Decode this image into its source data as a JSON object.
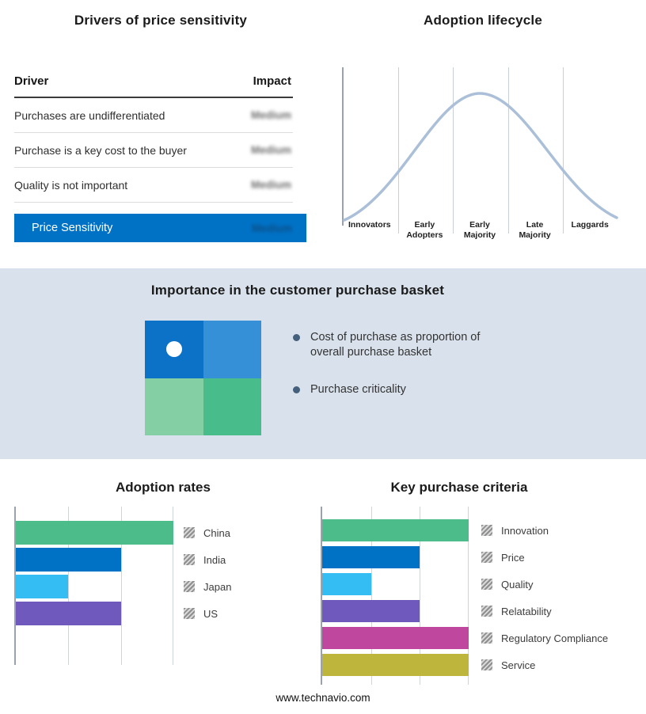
{
  "footer": {
    "url": "www.technavio.com"
  },
  "drivers_panel": {
    "title": "Drivers of price sensitivity",
    "columns": {
      "driver": "Driver",
      "impact": "Impact"
    },
    "rows": [
      {
        "driver": "Purchases are undifferentiated",
        "impact": "Medium"
      },
      {
        "driver": "Purchase is a key cost to the buyer",
        "impact": "Medium"
      },
      {
        "driver": "Quality is not important",
        "impact": "Medium"
      }
    ],
    "summary_row": {
      "label": "Price Sensitivity",
      "impact": "Medium"
    },
    "accent_color": "#0072c6"
  },
  "lifecycle_panel": {
    "title": "Adoption lifecycle",
    "stages": [
      [
        "Innovators"
      ],
      [
        "Early",
        "Adopters"
      ],
      [
        "Early",
        "Majority"
      ],
      [
        "Late",
        "Majority"
      ],
      [
        "Laggards"
      ]
    ],
    "curve_color": "#abc0d8"
  },
  "basket_panel": {
    "title": "Importance in the customer purchase basket",
    "background": "#d9e2ec",
    "quadrants": {
      "top_left": "#0c72c8",
      "top_right": "#3590d7",
      "bottom_left": "#84cfa3",
      "bottom_right": "#48bd8b"
    },
    "bullets": [
      {
        "text": "Cost of purchase as proportion of overall purchase basket"
      },
      {
        "text": "Purchase criticality"
      }
    ]
  },
  "chart_data": [
    {
      "type": "table",
      "title": "Drivers of price sensitivity",
      "columns": [
        "Driver",
        "Impact"
      ],
      "rows": [
        [
          "Purchases are undifferentiated",
          "Medium"
        ],
        [
          "Purchase is a key cost to the buyer",
          "Medium"
        ],
        [
          "Quality is not important",
          "Medium"
        ],
        [
          "Price Sensitivity",
          "Medium"
        ]
      ]
    },
    {
      "type": "line",
      "title": "Adoption lifecycle",
      "categories": [
        "Innovators",
        "Early Adopters",
        "Early Majority",
        "Late Majority",
        "Laggards"
      ],
      "description": "Bell-shaped adoption curve peaking at Early Majority",
      "line_color": "#abc0d8",
      "grid": true
    },
    {
      "type": "bar",
      "title": "Adoption rates",
      "orientation": "horizontal",
      "categories": [
        "China",
        "India",
        "Japan",
        "US"
      ],
      "values": [
        3,
        2,
        1,
        2
      ],
      "xlim": [
        0,
        3
      ],
      "colors": [
        "#4bbc8a",
        "#0072c6",
        "#33bdf2",
        "#7059bc"
      ],
      "grid": true,
      "legend_position": "right"
    },
    {
      "type": "bar",
      "title": "Key purchase criteria",
      "orientation": "horizontal",
      "categories": [
        "Innovation",
        "Price",
        "Quality",
        "Relatability",
        "Regulatory Compliance",
        "Service"
      ],
      "values": [
        3,
        2,
        1,
        2,
        3,
        3
      ],
      "xlim": [
        0,
        3
      ],
      "colors": [
        "#4bbc8a",
        "#0072c6",
        "#33bdf2",
        "#7059bc",
        "#c0479e",
        "#bdb53c"
      ],
      "grid": true,
      "legend_position": "right"
    }
  ]
}
